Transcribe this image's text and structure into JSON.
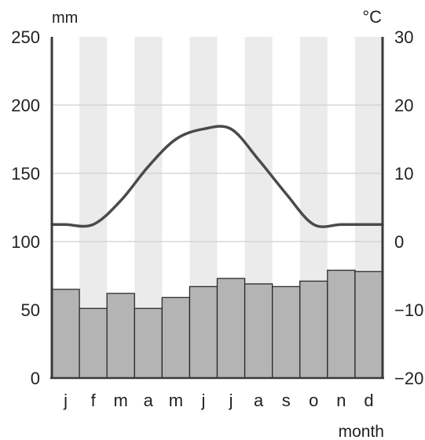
{
  "chart_data": {
    "type": "bar",
    "title": "",
    "xlabel": "month",
    "ylabel_left": "mm",
    "ylabel_right": "°C",
    "categories": [
      "j",
      "f",
      "m",
      "a",
      "m",
      "j",
      "j",
      "a",
      "s",
      "o",
      "n",
      "d"
    ],
    "ylim_left": [
      0,
      250
    ],
    "ylim_right": [
      -20,
      30
    ],
    "yticks_left": [
      "0",
      "50",
      "100",
      "150",
      "200",
      "250"
    ],
    "yticks_right": [
      "−20",
      "−10",
      "0",
      "10",
      "20",
      "30"
    ],
    "series": [
      {
        "name": "",
        "type": "bar",
        "axis": "left",
        "values": [
          65,
          51,
          62,
          51,
          59,
          67,
          73,
          69,
          67,
          71,
          79,
          78
        ]
      },
      {
        "name": "",
        "type": "line",
        "axis": "right",
        "values": [
          2.5,
          2.5,
          6,
          11,
          15,
          16.5,
          16.5,
          12,
          7,
          2.5,
          2.5,
          2.5
        ]
      }
    ],
    "grid": true,
    "colors": {
      "bar": "#b4b4b4",
      "bar_edge": "#2a2a2a",
      "line": "#4a4a4a",
      "stripe": "#ebebeb",
      "grid": "#cfcfcf",
      "axis": "#3a3a3a"
    }
  }
}
